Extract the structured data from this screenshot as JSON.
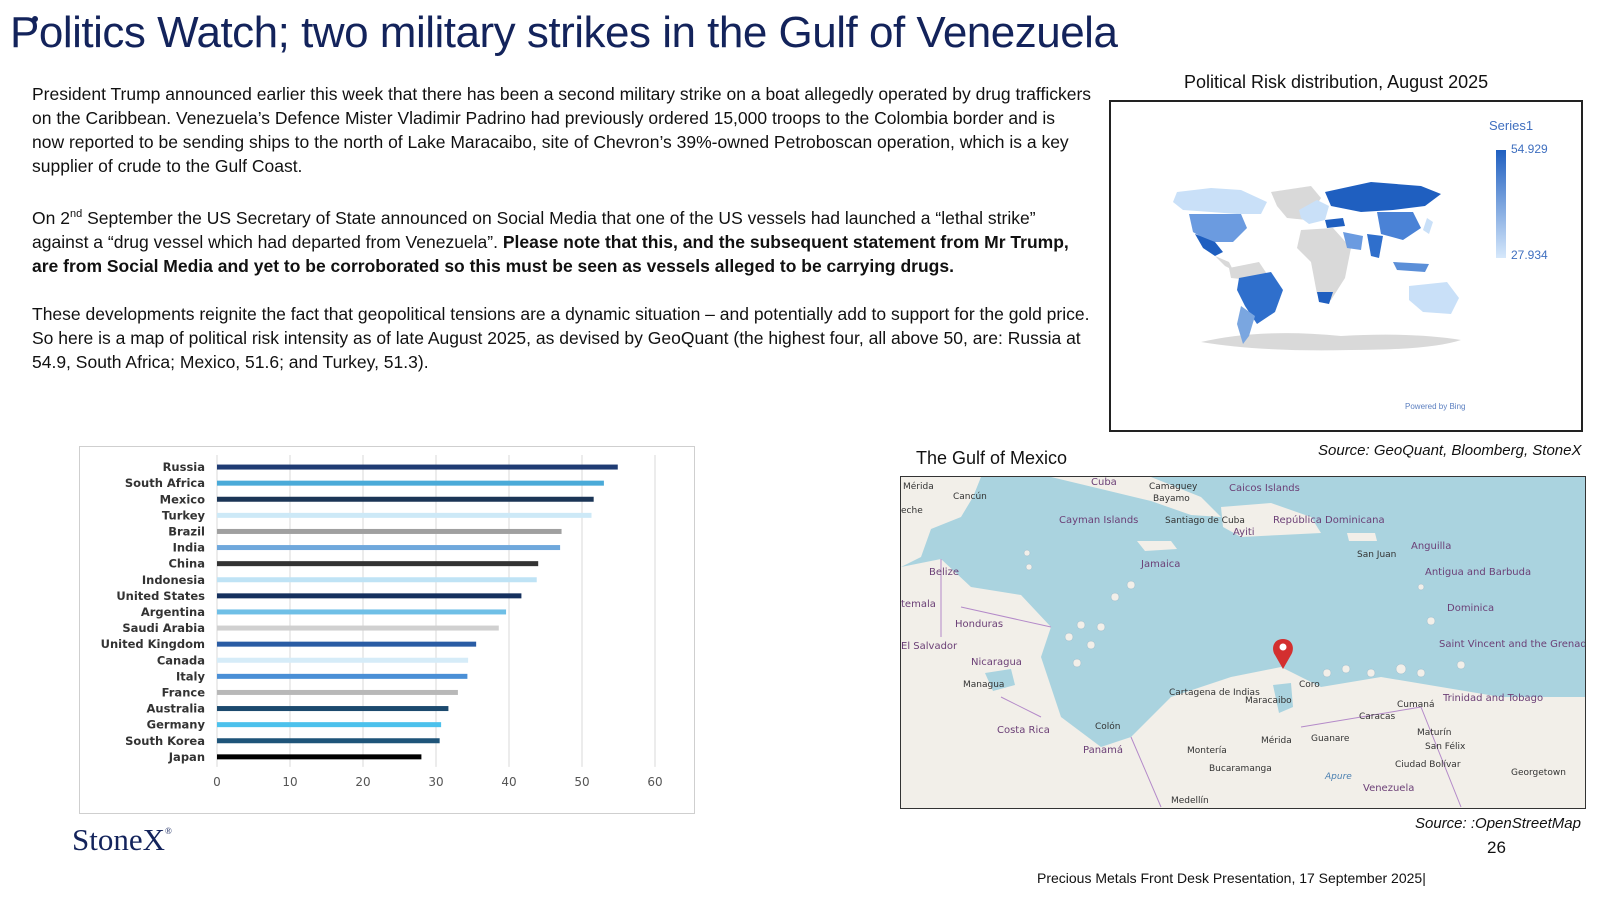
{
  "slide": {
    "title": "Politics Watch; two military strikes in the Gulf of Venezuela",
    "paragraph1": "President Trump announced earlier this week that there has been a second military strike on a boat allegedly operated by drug traffickers on the Caribbean.   Venezuela’s Defence Mister Vladimir Padrino had previously ordered 15,000 troops to the Colombia border and is now reported to be sending ships to the north of Lake Maracaibo, site of Chevron’s 39%-owned Petroboscan operation, which is a key supplier of crude to the Gulf Coast.",
    "paragraph2_pre": "On 2",
    "paragraph2_sup": "nd",
    "paragraph2_mid": " September the US Secretary of State announced on Social Media that one of the US vessels had  launched a “lethal strike” against a “drug vessel which had departed from Venezuela”.  ",
    "paragraph2_bold": "Please note that this, and the subsequent statement from Mr Trump, are from Social Media and yet to be corroborated so this must be seen as vessels alleged to be carrying drugs.",
    "paragraph3": "These  developments reignite the fact that geopolitical tensions are a dynamic situation – and potentially add to support for the gold price.  So here is a map of political risk intensity as of late August 2025, as devised by GeoQuant (the highest four, all above 50, are: Russia at 54.9, South Africa; Mexico, 51.6; and Turkey, 51.3).",
    "page_number": "26",
    "footer": "Precious Metals Front Desk Presentation, 17 September 2025|",
    "logo_text": "StoneX",
    "logo_mark": "®"
  },
  "risk_map": {
    "title": "Political Risk distribution, August 2025",
    "legend_series": "Series1",
    "legend_max": "54.929",
    "legend_min": "27.934",
    "powered_by": "Powered by Bing",
    "source": "Source: GeoQuant, Bloomberg, StoneX",
    "colors": {
      "high": "#1f5fc0",
      "mid": "#5b8fd8",
      "low": "#c9e0f8",
      "nodata": "#d9d9d9"
    }
  },
  "gulf_map": {
    "title": "The Gulf of Mexico",
    "source": "Source: :OpenStreetMap",
    "marker_color": "#d32f2f",
    "labels": [
      "Mérida",
      "Cancún",
      "Cuba",
      "Camaguey",
      "Bayamo",
      "Caicos Islands",
      "Cayman Islands",
      "Santiago de Cuba",
      "República Dominicana",
      "Ayiti",
      "San Juan",
      "Anguilla",
      "Antigua and Barbuda",
      "Jamaica",
      "Belize",
      "Honduras",
      "El Salvador",
      "Nicaragua",
      "Managua",
      "Dominica",
      "Saint Vincent and the Grenadines",
      "Trinidad and Tobago",
      "Cartagena de Indias",
      "Maracaibo",
      "Coro",
      "Caracas",
      "Cumaná",
      "Costa Rica",
      "Colón",
      "Panamá",
      "Montería",
      "Mérida",
      "Guanare",
      "Maturín",
      "San Félix",
      "Ciudad Bolívar",
      "Bucaramanga",
      "Apure",
      "Venezuela",
      "Georgetown",
      "Medellín",
      "eche",
      "temala"
    ]
  },
  "chart_data": {
    "type": "bar",
    "orientation": "horizontal",
    "categories": [
      "Russia",
      "South Africa",
      "Mexico",
      "Turkey",
      "Brazil",
      "India",
      "China",
      "Indonesia",
      "United States",
      "Argentina",
      "Saudi Arabia",
      "United Kingdom",
      "Canada",
      "Italy",
      "France",
      "Australia",
      "Germany",
      "South Korea",
      "Japan"
    ],
    "values": [
      54.9,
      53.0,
      51.6,
      51.3,
      47.2,
      47.0,
      44.0,
      43.8,
      41.7,
      39.6,
      38.6,
      35.5,
      34.4,
      34.3,
      33.0,
      31.7,
      30.7,
      30.5,
      28.0
    ],
    "colors": [
      "#1f3b73",
      "#4aaad8",
      "#1b3556",
      "#cde9f7",
      "#a0a0a0",
      "#6fa8dc",
      "#333333",
      "#bfe3f5",
      "#15305e",
      "#6fbfe6",
      "#d0d0d0",
      "#2a5ca4",
      "#d6ecf8",
      "#4a8fd6",
      "#b8b8b8",
      "#1c4a6e",
      "#4cc1ec",
      "#1e5479",
      "#000000"
    ],
    "xticks": [
      "0",
      "10",
      "20",
      "30",
      "40",
      "50",
      "60"
    ],
    "xlim": [
      0,
      60
    ],
    "grid": true,
    "title": "",
    "xlabel": "",
    "ylabel": ""
  }
}
